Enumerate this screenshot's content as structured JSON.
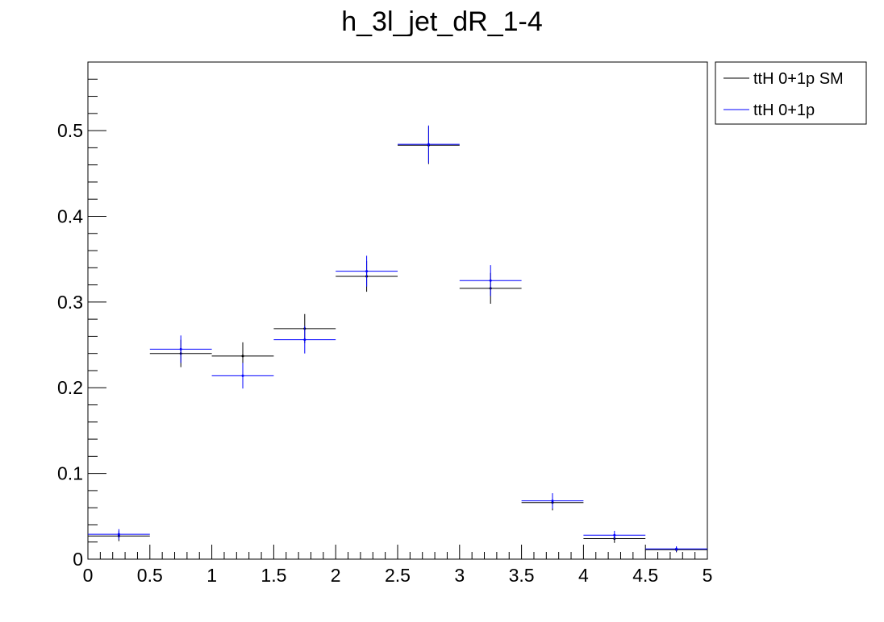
{
  "chart_data": {
    "type": "scatter",
    "title": "h_3l_jet_dR_1-4",
    "xlabel": "",
    "ylabel": "",
    "xlim": [
      0,
      5
    ],
    "ylim": [
      0,
      0.58
    ],
    "x_ticks": [
      0,
      0.5,
      1,
      1.5,
      2,
      2.5,
      3,
      3.5,
      4,
      4.5,
      5
    ],
    "x_tick_labels": [
      "0",
      "0.5",
      "1",
      "1.5",
      "2",
      "2.5",
      "3",
      "3.5",
      "4",
      "4.5",
      "5"
    ],
    "y_ticks": [
      0,
      0.1,
      0.2,
      0.3,
      0.4,
      0.5
    ],
    "y_tick_labels": [
      "0",
      "0.1",
      "0.2",
      "0.3",
      "0.4",
      "0.5"
    ],
    "bin_edges": [
      0,
      0.5,
      1,
      1.5,
      2,
      2.5,
      3,
      3.5,
      4,
      4.5,
      5
    ],
    "grid": false,
    "legend_position": "top-right outside",
    "series": [
      {
        "name": "ttH 0+1p SM",
        "color": "#000000",
        "values": [
          0.027,
          0.24,
          0.237,
          0.269,
          0.33,
          0.483,
          0.316,
          0.066,
          0.024,
          0.011
        ],
        "errors": [
          0.006,
          0.016,
          0.016,
          0.017,
          0.018,
          0.022,
          0.018,
          0.009,
          0.005,
          0.003
        ]
      },
      {
        "name": "ttH 0+1p",
        "color": "#0000ff",
        "values": [
          0.029,
          0.245,
          0.214,
          0.256,
          0.336,
          0.484,
          0.325,
          0.068,
          0.028,
          0.012
        ],
        "errors": [
          0.006,
          0.016,
          0.015,
          0.016,
          0.018,
          0.022,
          0.018,
          0.009,
          0.005,
          0.003
        ]
      }
    ]
  }
}
